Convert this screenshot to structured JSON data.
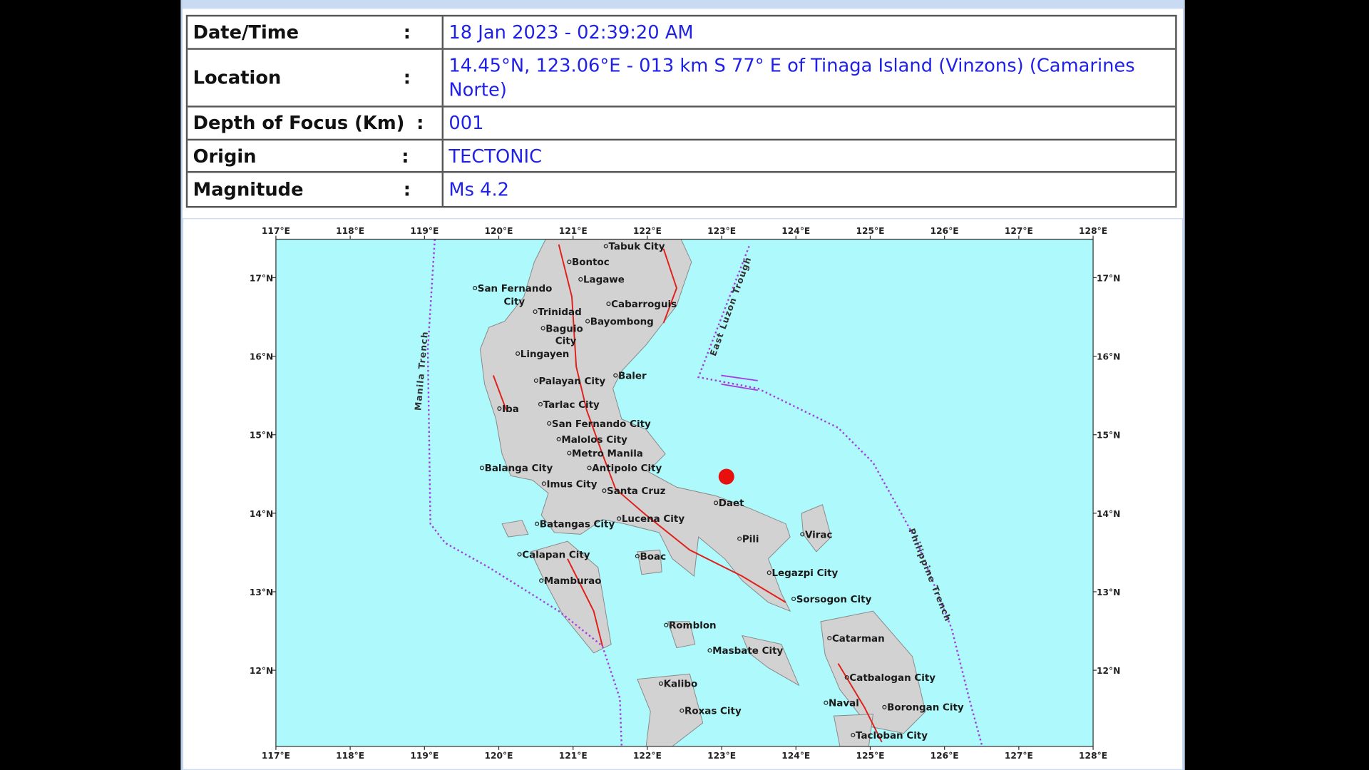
{
  "bulletin": {
    "rows": [
      {
        "label": "Date/Time",
        "separator": ":",
        "value": "18 Jan 2023 - 02:39:20 AM"
      },
      {
        "label": "Location",
        "separator": ":",
        "value": "14.45°N, 123.06°E - 013 km S 77° E of Tinaga Island (Vinzons) (Camarines Norte)"
      },
      {
        "label": "Depth of Focus (Km)",
        "separator": ":",
        "value": "001"
      },
      {
        "label": "Origin",
        "separator": ":",
        "value": "TECTONIC"
      },
      {
        "label": "Magnitude",
        "separator": ":",
        "value": "Ms 4.2"
      }
    ],
    "map": {
      "xlim": [
        117,
        128
      ],
      "ylim": [
        11.03,
        17.49
      ],
      "lon_ticks": [
        {
          "value": 117,
          "label": "117°E"
        },
        {
          "value": 118,
          "label": "118°E"
        },
        {
          "value": 119,
          "label": "119°E"
        },
        {
          "value": 120,
          "label": "120°E"
        },
        {
          "value": 121,
          "label": "121°E"
        },
        {
          "value": 122,
          "label": "122°E"
        },
        {
          "value": 123,
          "label": "123°E"
        },
        {
          "value": 124,
          "label": "124°E"
        },
        {
          "value": 125,
          "label": "125°E"
        },
        {
          "value": 126,
          "label": "126°E"
        },
        {
          "value": 127,
          "label": "127°E"
        },
        {
          "value": 128,
          "label": "128°E"
        }
      ],
      "lat_ticks": [
        {
          "value": 17,
          "label": "17°N"
        },
        {
          "value": 16,
          "label": "16°N"
        },
        {
          "value": 15,
          "label": "15°N"
        },
        {
          "value": 14,
          "label": "14°N"
        },
        {
          "value": 13,
          "label": "13°N"
        },
        {
          "value": 12,
          "label": "12°N"
        }
      ],
      "places": [
        "Tabuk City",
        "Bontoc",
        "Lagawe",
        "San Fernando",
        "City",
        "Trinidad",
        "Cabarroguis",
        "Bayombong",
        "Baguio",
        "City",
        "Lingayen",
        "Baler",
        "Palayan City",
        "Tarlac City",
        "Iba",
        "San Fernando City",
        "Malolos City",
        "Metro Manila",
        "Balanga City",
        "Antipolo City",
        "Imus City",
        "Santa Cruz",
        "Daet",
        "Batangas City",
        "Lucena City",
        "Virac",
        "Pili",
        "Calapan City",
        "Boac",
        "Legazpi City",
        "Mamburao",
        "Sorsogon City",
        "Romblon",
        "Catarman",
        "Masbate City",
        "Catbalogan City",
        "Kalibo",
        "Borongan City",
        "Roxas City",
        "Naval",
        "Tacloban City"
      ],
      "features": [
        "Manila Trench",
        "East Luzon Trough",
        "Philippine Trench"
      ]
    }
  }
}
